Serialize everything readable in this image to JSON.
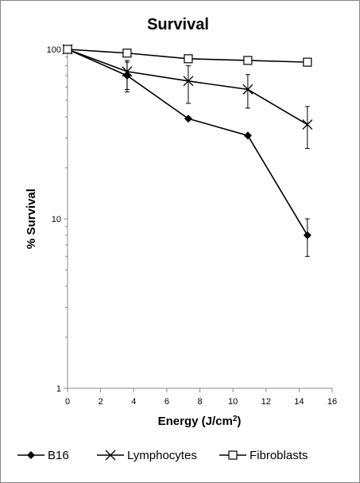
{
  "chart_data": {
    "type": "line",
    "title": "Survival",
    "xlabel": "Energy (J/cm",
    "xlabel_sup": "2",
    "xlabel_close": ")",
    "ylabel": "% Survival",
    "xlim": [
      0,
      16
    ],
    "ylim": [
      1,
      100
    ],
    "yscale": "log",
    "xticks": [
      0,
      2,
      4,
      6,
      8,
      10,
      12,
      14,
      16
    ],
    "yticks": [
      1,
      10,
      100
    ],
    "grid": false,
    "legend_position": "bottom",
    "series": [
      {
        "name": "B16",
        "marker": "diamond",
        "x": [
          0,
          3.6,
          7.3,
          10.9,
          14.5
        ],
        "y": [
          100,
          70,
          39,
          31,
          8
        ],
        "err_low": [
          100,
          56,
          39,
          31,
          6
        ],
        "err_high": [
          100,
          84,
          39,
          31,
          10
        ]
      },
      {
        "name": "Lymphocytes",
        "marker": "x",
        "x": [
          0,
          3.6,
          7.3,
          10.9,
          14.5
        ],
        "y": [
          100,
          74,
          65,
          58,
          36
        ],
        "err_low": [
          100,
          58,
          48,
          45,
          26
        ],
        "err_high": [
          100,
          86,
          80,
          71,
          46
        ]
      },
      {
        "name": "Fibroblasts",
        "marker": "square",
        "x": [
          0,
          3.6,
          7.3,
          10.9,
          14.5
        ],
        "y": [
          100,
          95,
          88,
          86,
          84
        ],
        "err_low": [
          100,
          95,
          88,
          86,
          84
        ],
        "err_high": [
          100,
          95,
          88,
          86,
          84
        ]
      }
    ],
    "colors": {
      "line": "#000000",
      "axis": "#888888"
    }
  }
}
